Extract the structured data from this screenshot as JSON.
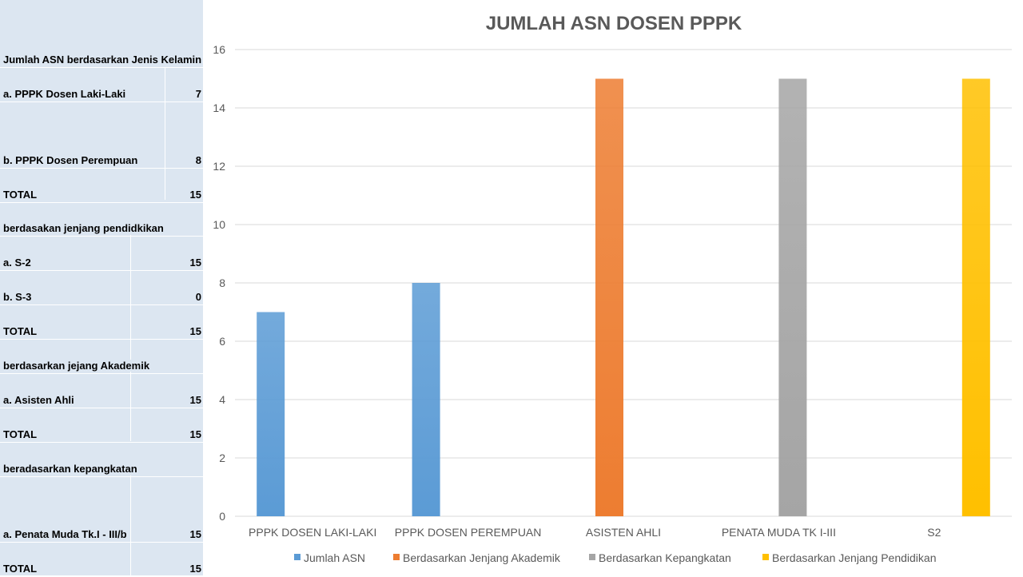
{
  "sheet": {
    "rows": [
      {
        "label": "Jumlah ASN berdasarkan Jenis Kelamin",
        "value": ""
      },
      {
        "label": "a. PPPK Dosen Laki-Laki",
        "value": "7"
      },
      {
        "label": "b. PPPK Dosen Perempuan",
        "value": "8"
      },
      {
        "label": "TOTAL",
        "value": "15"
      },
      {
        "label": "berdasakan jenjang pendidkikan",
        "value": ""
      },
      {
        "label": "a. S-2",
        "value": "15"
      },
      {
        "label": "b. S-3",
        "value": "0"
      },
      {
        "label": "TOTAL",
        "value": "15"
      },
      {
        "label": "berdasarkan jejang Akademik",
        "value": ""
      },
      {
        "label": "a. Asisten Ahli",
        "value": "15"
      },
      {
        "label": "TOTAL",
        "value": "15"
      },
      {
        "label": "beradasarkan kepangkatan",
        "value": ""
      },
      {
        "label": "a. Penata Muda Tk.I - III/b",
        "value": "15"
      },
      {
        "label": "TOTAL",
        "value": "15"
      }
    ]
  },
  "chart_data": {
    "type": "bar",
    "title": "JUMLAH ASN DOSEN PPPK",
    "categories": [
      "PPPK DOSEN LAKI-LAKI",
      "PPPK DOSEN PEREMPUAN",
      "ASISTEN AHLI",
      "PENATA MUDA TK I-III",
      "S2"
    ],
    "series": [
      {
        "name": "Jumlah ASN",
        "color": "#5b9bd5",
        "values": [
          7,
          8,
          null,
          null,
          null
        ]
      },
      {
        "name": "Berdasarkan Jenjang Akademik",
        "color": "#ed7d31",
        "values": [
          null,
          null,
          15,
          null,
          null
        ]
      },
      {
        "name": "Berdasarkan Kepangkatan",
        "color": "#a5a5a5",
        "values": [
          null,
          null,
          null,
          15,
          null
        ]
      },
      {
        "name": "Berdasarkan Jenjang Pendidikan",
        "color": "#ffc000",
        "values": [
          null,
          null,
          null,
          null,
          15
        ]
      }
    ],
    "ylim": [
      0,
      16
    ],
    "yticks": [
      0,
      2,
      4,
      6,
      8,
      10,
      12,
      14,
      16
    ],
    "grid": true,
    "legend": "bottom"
  }
}
